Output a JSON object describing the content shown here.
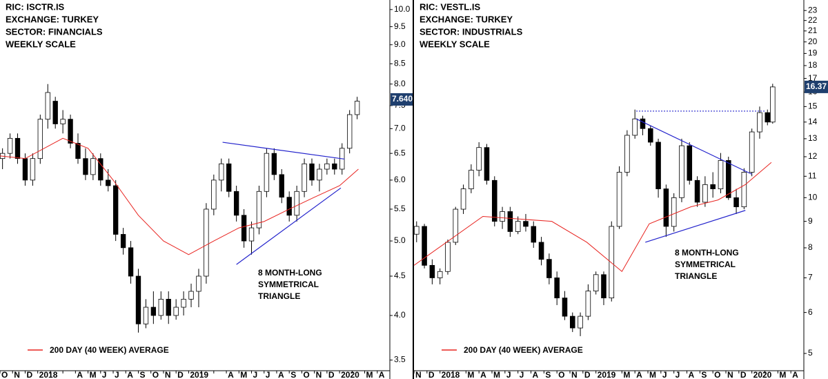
{
  "chart_data": [
    {
      "type": "candlestick",
      "header": [
        "RIC: ISCTR.IS",
        "EXCHANGE: TURKEY",
        "SECTOR: FINANCIALS",
        "WEEKLY SCALE"
      ],
      "annotation": [
        "8 MONTH-LONG",
        "SYMMETRICAL",
        "TRIANGLE"
      ],
      "annotation_color": "#2222cc",
      "log_scale": true,
      "xlim": [
        0,
        31
      ],
      "categories": [
        "O",
        "N",
        "D",
        "2018",
        null,
        null,
        "A",
        "M",
        "J",
        "J",
        "A",
        "S",
        "O",
        "N",
        "D",
        "2019",
        null,
        null,
        "A",
        "M",
        "J",
        "J",
        "A",
        "S",
        "O",
        "N",
        "D",
        "2020",
        null,
        "M",
        "A"
      ],
      "ylim": [
        3.39,
        10.29
      ],
      "yticks": [
        {
          "value": 3.5,
          "label": "3.5"
        },
        {
          "value": 4,
          "label": "4.0"
        },
        {
          "value": 4.5,
          "label": "4.5"
        },
        {
          "value": 5,
          "label": "5.0"
        },
        {
          "value": 5.5,
          "label": "5.5"
        },
        {
          "value": 6,
          "label": "6.0"
        },
        {
          "value": 6.5,
          "label": "6.5"
        },
        {
          "value": 7,
          "label": "7.0"
        },
        {
          "value": 7.5,
          "label": "7.5"
        },
        {
          "value": 8,
          "label": "8.0"
        },
        {
          "value": 8.5,
          "label": "8.5"
        },
        {
          "value": 9,
          "label": "9.0"
        },
        {
          "value": 9.5,
          "label": "9.5"
        },
        {
          "value": 10,
          "label": "10.0"
        }
      ],
      "last_price": {
        "value": 7.64,
        "label": "7.640"
      },
      "candles": {
        "x": [
          0.2,
          0.8,
          1.4,
          2.0,
          2.6,
          3.2,
          3.8,
          4.4,
          5.0,
          5.6,
          6.2,
          6.8,
          7.4,
          8.0,
          8.6,
          9.2,
          9.8,
          10.4,
          11.0,
          11.6,
          12.2,
          12.8,
          13.4,
          14.0,
          14.6,
          15.2,
          15.8,
          16.4,
          17.0,
          17.6,
          18.2,
          18.8,
          19.4,
          20.0,
          20.6,
          21.2,
          21.8,
          22.4,
          23.0,
          23.6,
          24.2,
          24.8,
          25.4,
          26.0,
          26.6,
          27.2,
          27.8,
          28.4
        ],
        "open": [
          6.4,
          6.5,
          6.8,
          6.4,
          6.0,
          6.4,
          7.2,
          7.6,
          7.1,
          7.2,
          6.7,
          6.4,
          6.1,
          6.4,
          6.0,
          5.9,
          5.1,
          4.9,
          4.5,
          3.9,
          4.1,
          4.0,
          4.2,
          4.0,
          4.1,
          4.2,
          4.3,
          4.5,
          5.5,
          6.0,
          6.3,
          5.8,
          5.4,
          5.0,
          5.2,
          5.8,
          6.5,
          6.1,
          5.7,
          5.4,
          5.8,
          6.3,
          6.0,
          6.2,
          6.3,
          6.2,
          6.6,
          7.3
        ],
        "high": [
          6.6,
          6.9,
          6.9,
          6.5,
          6.5,
          7.3,
          8.0,
          7.7,
          7.4,
          7.3,
          6.9,
          6.6,
          6.5,
          6.5,
          6.2,
          6.0,
          5.2,
          5.0,
          4.6,
          4.2,
          4.3,
          4.3,
          4.3,
          4.2,
          4.3,
          4.4,
          4.6,
          5.6,
          6.1,
          6.4,
          6.4,
          5.9,
          5.5,
          5.3,
          5.9,
          6.6,
          6.6,
          6.2,
          5.8,
          5.9,
          6.4,
          6.4,
          6.3,
          6.4,
          6.4,
          6.7,
          7.4,
          7.7
        ],
        "low": [
          6.2,
          6.4,
          6.3,
          5.9,
          5.9,
          6.3,
          7.0,
          7.0,
          6.9,
          6.6,
          6.3,
          6.0,
          6.0,
          5.9,
          5.8,
          5.0,
          4.8,
          4.4,
          3.8,
          3.85,
          3.9,
          3.95,
          3.9,
          3.95,
          4.0,
          4.1,
          4.1,
          4.4,
          5.4,
          5.8,
          5.7,
          5.3,
          4.9,
          4.8,
          5.1,
          5.7,
          6.0,
          5.6,
          5.3,
          5.3,
          5.7,
          5.9,
          5.8,
          6.1,
          6.1,
          6.1,
          6.5,
          7.2
        ],
        "close": [
          6.5,
          6.8,
          6.4,
          6.0,
          6.4,
          7.2,
          7.8,
          7.1,
          7.2,
          6.7,
          6.4,
          6.1,
          6.4,
          6.0,
          5.9,
          5.1,
          4.9,
          4.5,
          3.9,
          4.1,
          4.0,
          4.2,
          4.0,
          4.1,
          4.2,
          4.3,
          4.5,
          5.5,
          6.0,
          6.3,
          5.8,
          5.4,
          5.0,
          5.2,
          5.8,
          6.5,
          6.1,
          5.7,
          5.4,
          5.8,
          6.3,
          6.0,
          6.2,
          6.3,
          6.2,
          6.6,
          7.3,
          7.6
        ]
      },
      "series": [
        {
          "name": "200 DAY (40 WEEK) AVERAGE",
          "color": "#e8231f",
          "x": [
            0,
            2,
            5,
            7,
            9,
            11,
            13,
            15,
            17,
            19,
            21,
            23,
            25,
            27,
            28.5
          ],
          "values": [
            6.45,
            6.4,
            6.8,
            6.6,
            6.0,
            5.4,
            5.0,
            4.8,
            5.0,
            5.2,
            5.3,
            5.5,
            5.7,
            5.9,
            6.2
          ]
        }
      ],
      "trendlines": [
        {
          "color": "#2222cc",
          "x": [
            17.7,
            27.4
          ],
          "values": [
            6.72,
            6.39
          ]
        },
        {
          "color": "#2222cc",
          "x": [
            18.8,
            27.1
          ],
          "values": [
            4.66,
            5.86
          ]
        }
      ]
    },
    {
      "type": "candlestick",
      "header": [
        "RIC: VESTL.IS",
        "EXCHANGE: TURKEY",
        "SECTOR: INDUSTRIALS",
        "WEEKLY SCALE"
      ],
      "annotation": [
        "8 MONTH-LONG",
        "SYMMETRICAL",
        "TRIANGLE"
      ],
      "annotation_color": "#2222cc",
      "log_scale": true,
      "xlim": [
        0,
        30
      ],
      "categories": [
        "N",
        "D",
        "2018",
        null,
        "M",
        "A",
        "M",
        "J",
        "J",
        "A",
        "S",
        "O",
        "N",
        "D",
        "2019",
        null,
        "M",
        "A",
        "M",
        "J",
        "J",
        "A",
        "S",
        "O",
        "N",
        "D",
        "2020",
        null,
        "M",
        "A"
      ],
      "ylim": [
        4.63,
        24.1
      ],
      "yticks": [
        5,
        6,
        7,
        8,
        9,
        10,
        11,
        12,
        13,
        14,
        15,
        16,
        17,
        18,
        19,
        20,
        21,
        22,
        23
      ],
      "last_price": 16.37,
      "candles": {
        "x": [
          0.2,
          0.8,
          1.4,
          2.0,
          2.6,
          3.2,
          3.8,
          4.4,
          5.0,
          5.6,
          6.2,
          6.8,
          7.4,
          8.0,
          8.6,
          9.2,
          9.8,
          10.4,
          11.0,
          11.6,
          12.2,
          12.8,
          13.4,
          14.0,
          14.6,
          15.2,
          15.8,
          16.4,
          17.0,
          17.6,
          18.2,
          18.8,
          19.4,
          20.0,
          20.6,
          21.2,
          21.8,
          22.4,
          23.0,
          23.6,
          24.2,
          24.8,
          25.4,
          26.0,
          26.6,
          27.2,
          27.6
        ],
        "open": [
          8.5,
          8.8,
          7.4,
          7.0,
          7.2,
          8.2,
          9.5,
          10.4,
          11.3,
          12.5,
          10.8,
          9.0,
          9.4,
          8.6,
          9.0,
          8.8,
          8.2,
          7.6,
          7.0,
          6.4,
          5.9,
          5.6,
          5.9,
          6.6,
          7.1,
          6.4,
          8.8,
          11.2,
          13.2,
          14.2,
          13.6,
          12.8,
          10.4,
          8.8,
          10.0,
          12.6,
          10.8,
          9.8,
          10.6,
          10.4,
          11.8,
          10.0,
          9.6,
          11.2,
          13.4,
          14.6,
          14.0
        ],
        "high": [
          9.0,
          8.9,
          7.6,
          7.3,
          8.3,
          9.6,
          10.6,
          11.6,
          12.8,
          12.7,
          11.0,
          9.6,
          9.6,
          9.2,
          9.3,
          9.0,
          8.4,
          7.8,
          7.2,
          6.6,
          6.0,
          6.0,
          6.8,
          7.2,
          7.2,
          9.0,
          11.5,
          13.5,
          14.8,
          14.4,
          13.8,
          13.0,
          10.6,
          10.2,
          13.0,
          12.8,
          11.0,
          11.0,
          11.2,
          12.2,
          12.0,
          10.4,
          11.4,
          13.6,
          15.0,
          14.8,
          16.6
        ],
        "low": [
          8.2,
          7.3,
          6.8,
          6.8,
          7.1,
          8.1,
          9.3,
          10.2,
          11.0,
          10.6,
          8.8,
          8.7,
          8.4,
          8.5,
          8.6,
          8.0,
          7.4,
          6.8,
          6.2,
          5.8,
          5.5,
          5.4,
          5.8,
          6.5,
          6.2,
          6.3,
          8.7,
          11.0,
          13.0,
          13.2,
          12.6,
          10.0,
          8.4,
          8.6,
          9.8,
          10.6,
          9.6,
          9.6,
          10.0,
          10.2,
          9.9,
          9.3,
          9.5,
          11.0,
          13.0,
          13.8,
          13.9
        ],
        "close": [
          8.8,
          7.4,
          7.0,
          7.2,
          8.2,
          9.5,
          10.4,
          11.3,
          12.5,
          10.8,
          9.0,
          9.4,
          8.6,
          9.0,
          8.8,
          8.2,
          7.6,
          7.0,
          6.4,
          5.9,
          5.6,
          5.9,
          6.6,
          7.1,
          6.4,
          8.8,
          11.2,
          13.2,
          14.2,
          13.6,
          12.8,
          10.4,
          8.8,
          10.0,
          12.6,
          10.8,
          9.8,
          10.6,
          10.4,
          11.8,
          10.0,
          9.6,
          11.2,
          13.4,
          14.6,
          14.0,
          16.37
        ]
      },
      "series": [
        {
          "name": "200 DAY (40 WEEK) AVERAGE",
          "color": "#e8231f",
          "x": [
            0,
            5.3,
            10.6,
            13.3,
            16,
            18.1,
            21.3,
            23.4,
            25.5,
            27.5
          ],
          "values": [
            7.4,
            9.2,
            9.0,
            8.2,
            7.2,
            8.9,
            9.6,
            9.9,
            10.6,
            11.7
          ]
        }
      ],
      "trendlines": [
        {
          "color": "#2222cc",
          "x": [
            17.1,
            26.0
          ],
          "values": [
            14.2,
            11.1
          ]
        },
        {
          "color": "#2222cc",
          "x": [
            17.8,
            25.5
          ],
          "values": [
            8.2,
            9.45
          ]
        },
        {
          "color": "#2222cc",
          "x": [
            17.1,
            27.0
          ],
          "values": [
            14.7,
            14.7
          ],
          "dashed": true
        }
      ]
    }
  ]
}
